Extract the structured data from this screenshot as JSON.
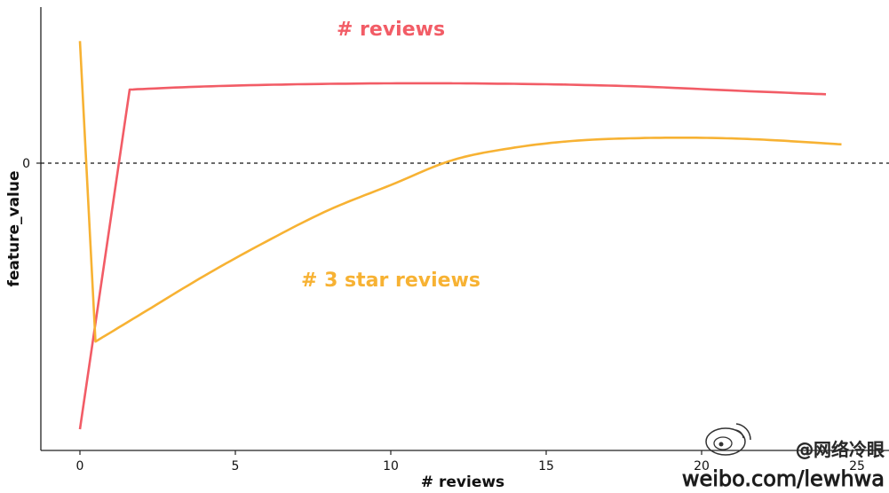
{
  "chart_data": {
    "type": "line",
    "xlabel": "# reviews",
    "ylabel": "feature_value",
    "x_ticks": [
      "0",
      "5",
      "10",
      "15",
      "20",
      "25"
    ],
    "y_ticks": [
      "0"
    ],
    "xlim": [
      -1.25,
      26
    ],
    "ylim": [
      -0.85,
      0.5
    ],
    "reference_line": {
      "y": 0,
      "style": "dashed"
    },
    "grid": false,
    "series": [
      {
        "name": "# reviews",
        "color": "#f25c66",
        "x": [
          0,
          1.6,
          4,
          7,
          10,
          12,
          15,
          18,
          21,
          24
        ],
        "y": [
          -0.85,
          0.235,
          0.245,
          0.252,
          0.255,
          0.255,
          0.252,
          0.245,
          0.232,
          0.22
        ]
      },
      {
        "name": "# 3 star reviews",
        "color": "#f7b233",
        "x": [
          0,
          0.5,
          2,
          4,
          6,
          8,
          10,
          12,
          14,
          16,
          18,
          20,
          22,
          24.5
        ],
        "y": [
          0.39,
          -0.57,
          -0.48,
          -0.36,
          -0.25,
          -0.15,
          -0.07,
          0.01,
          0.05,
          0.072,
          0.08,
          0.081,
          0.075,
          0.06
        ]
      }
    ]
  },
  "watermark": {
    "handle": "@网络冷眼",
    "url": "weibo.com/lewhwa"
  }
}
